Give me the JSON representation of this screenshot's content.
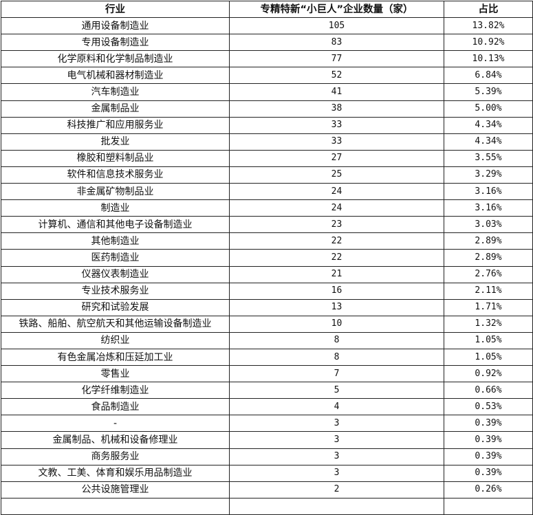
{
  "table": {
    "headers": [
      "行业",
      "专精特新“小巨人”企业数量（家）",
      "占比"
    ],
    "rows": [
      [
        "通用设备制造业",
        "105",
        "13.82%"
      ],
      [
        "专用设备制造业",
        "83",
        "10.92%"
      ],
      [
        "化学原料和化学制品制造业",
        "77",
        "10.13%"
      ],
      [
        "电气机械和器材制造业",
        "52",
        "6.84%"
      ],
      [
        "汽车制造业",
        "41",
        "5.39%"
      ],
      [
        "金属制品业",
        "38",
        "5.00%"
      ],
      [
        "科技推广和应用服务业",
        "33",
        "4.34%"
      ],
      [
        "批发业",
        "33",
        "4.34%"
      ],
      [
        "橡胶和塑料制品业",
        "27",
        "3.55%"
      ],
      [
        "软件和信息技术服务业",
        "25",
        "3.29%"
      ],
      [
        "非金属矿物制品业",
        "24",
        "3.16%"
      ],
      [
        "制造业",
        "24",
        "3.16%"
      ],
      [
        "计算机、通信和其他电子设备制造业",
        "23",
        "3.03%"
      ],
      [
        "其他制造业",
        "22",
        "2.89%"
      ],
      [
        "医药制造业",
        "22",
        "2.89%"
      ],
      [
        "仪器仪表制造业",
        "21",
        "2.76%"
      ],
      [
        "专业技术服务业",
        "16",
        "2.11%"
      ],
      [
        "研究和试验发展",
        "13",
        "1.71%"
      ],
      [
        "铁路、船舶、航空航天和其他运输设备制造业",
        "10",
        "1.32%"
      ],
      [
        "纺织业",
        "8",
        "1.05%"
      ],
      [
        "有色金属冶炼和压延加工业",
        "8",
        "1.05%"
      ],
      [
        "零售业",
        "7",
        "0.92%"
      ],
      [
        "化学纤维制造业",
        "5",
        "0.66%"
      ],
      [
        "食品制造业",
        "4",
        "0.53%"
      ],
      [
        "-",
        "3",
        "0.39%"
      ],
      [
        "金属制品、机械和设备修理业",
        "3",
        "0.39%"
      ],
      [
        "商务服务业",
        "3",
        "0.39%"
      ],
      [
        "文教、工美、体育和娱乐用品制造业",
        "3",
        "0.39%"
      ],
      [
        "公共设施管理业",
        "2",
        "0.26%"
      ]
    ]
  }
}
